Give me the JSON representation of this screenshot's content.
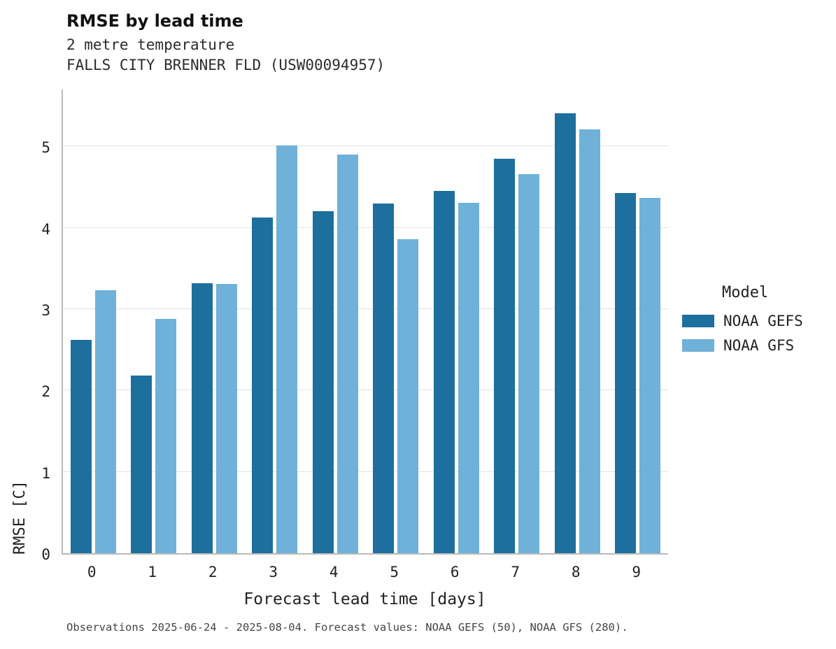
{
  "header": {
    "title": "RMSE by lead time",
    "subtitle1": "2 metre temperature",
    "subtitle2": "FALLS CITY BRENNER FLD (USW00094957)"
  },
  "chart_data": {
    "type": "bar",
    "title": "RMSE by lead time",
    "xlabel": "Forecast lead time [days]",
    "ylabel": "RMSE [C]",
    "categories": [
      "0",
      "1",
      "2",
      "3",
      "4",
      "5",
      "6",
      "7",
      "8",
      "9"
    ],
    "series": [
      {
        "name": "NOAA GEFS",
        "color": "#1d6f9e",
        "values": [
          2.62,
          2.18,
          3.32,
          4.13,
          4.2,
          4.3,
          4.45,
          4.85,
          5.41,
          4.43
        ]
      },
      {
        "name": "NOAA GFS",
        "color": "#6fb1d8",
        "values": [
          3.23,
          2.88,
          3.31,
          5.01,
          4.9,
          3.86,
          4.31,
          4.66,
          5.21,
          4.37
        ]
      }
    ],
    "ylim": [
      0,
      5.7
    ],
    "yticks": [
      0,
      1,
      2,
      3,
      4,
      5
    ],
    "grid": true,
    "legend_title": "Model",
    "legend_position": "right"
  },
  "footer": {
    "caption": "Observations 2025-06-24 - 2025-08-04. Forecast values: NOAA GEFS (50), NOAA GFS (280)."
  }
}
